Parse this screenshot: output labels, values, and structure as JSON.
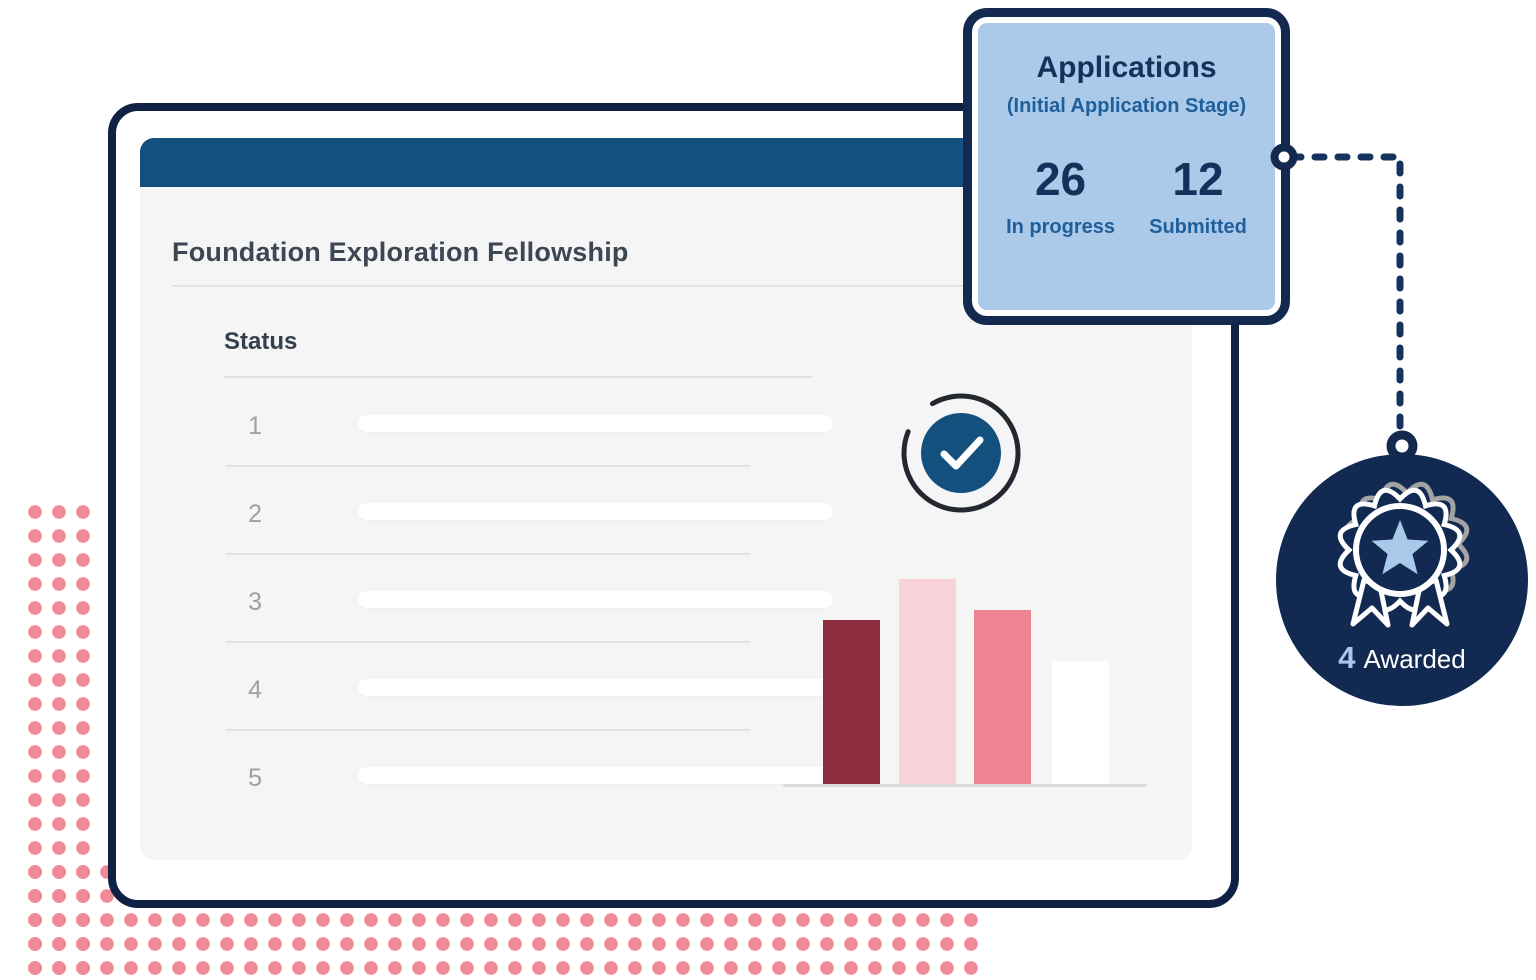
{
  "colors": {
    "navy_border": "#0f2145",
    "header_blue": "#13507e",
    "app_card_border": "#13294f",
    "app_card_fill": "#abc9e9",
    "navy_text": "#16305c",
    "mid_blue_text": "#1f5f9a",
    "badge_navy": "#122a52",
    "connector_navy": "#16335f",
    "dot_pink": "#f08b96",
    "panel_gray": "#f5f5f6",
    "title_slate": "#3d4653",
    "row_number_gray": "#9ba1a8",
    "divider_gray": "#e3e3e3",
    "star_light_blue": "#a9c9e9"
  },
  "main_card": {
    "title": "Foundation Exploration Fellowship",
    "status": {
      "heading": "Status",
      "rows": [
        {
          "number": "1"
        },
        {
          "number": "2"
        },
        {
          "number": "3"
        },
        {
          "number": "4"
        },
        {
          "number": "5"
        }
      ]
    },
    "check_icon": "checkmark-circle",
    "chart_data": {
      "type": "bar",
      "categories": [
        "bar-1",
        "bar-2",
        "bar-3",
        "bar-4"
      ],
      "values": [
        80,
        100,
        85,
        60
      ],
      "colors": [
        "#8e2c3f",
        "#f9d3d9",
        "#ee8491",
        "#ffffff"
      ],
      "title": "",
      "xlabel": "",
      "ylabel": "",
      "ylim": [
        0,
        100
      ],
      "grid": false,
      "legend": false
    }
  },
  "applications_card": {
    "title": "Applications",
    "subtitle": "(Initial Application Stage)",
    "stats": [
      {
        "value": "26",
        "label": "In progress"
      },
      {
        "value": "12",
        "label": "Submitted"
      }
    ]
  },
  "awarded_badge": {
    "value": "4",
    "label": "Awarded",
    "icon": "rosette-award"
  }
}
